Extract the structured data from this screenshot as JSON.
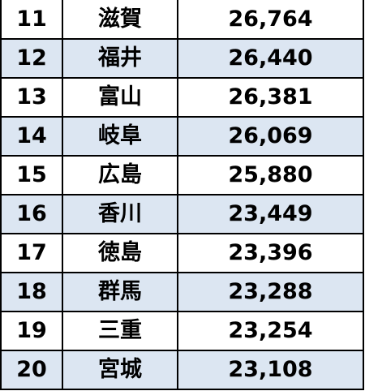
{
  "table": {
    "rows": [
      {
        "rank": "11",
        "prefecture": "滋賀",
        "value": "26,764"
      },
      {
        "rank": "12",
        "prefecture": "福井",
        "value": "26,440"
      },
      {
        "rank": "13",
        "prefecture": "富山",
        "value": "26,381"
      },
      {
        "rank": "14",
        "prefecture": "岐阜",
        "value": "26,069"
      },
      {
        "rank": "15",
        "prefecture": "広島",
        "value": "25,880"
      },
      {
        "rank": "16",
        "prefecture": "香川",
        "value": "23,449"
      },
      {
        "rank": "17",
        "prefecture": "徳島",
        "value": "23,396"
      },
      {
        "rank": "18",
        "prefecture": "群馬",
        "value": "23,288"
      },
      {
        "rank": "19",
        "prefecture": "三重",
        "value": "23,254"
      },
      {
        "rank": "20",
        "prefecture": "宮城",
        "value": "23,108"
      }
    ]
  },
  "colors": {
    "row_alt_background": "#dce6f2",
    "row_background": "#ffffff",
    "border": "#000000",
    "text": "#000000"
  }
}
